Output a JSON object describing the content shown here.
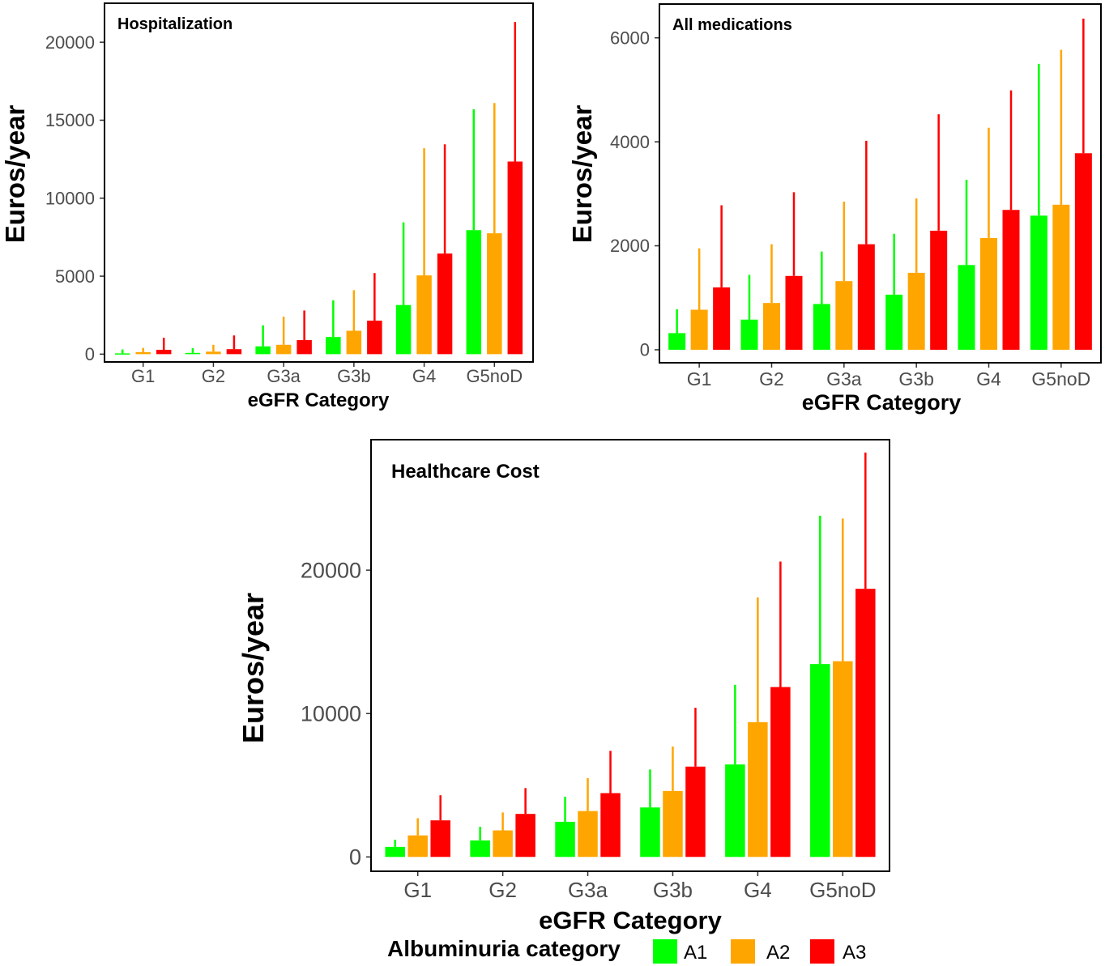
{
  "legend": {
    "title": "Albuminuria category",
    "items": [
      {
        "label": "A1",
        "color": "#00ff00"
      },
      {
        "label": "A2",
        "color": "#ffa500"
      },
      {
        "label": "A3",
        "color": "#ff0000"
      }
    ]
  },
  "chart_data": [
    {
      "type": "bar",
      "title": "Hospitalization",
      "xlabel": "eGFR Category",
      "ylabel": "Euros/year",
      "categories": [
        "G1",
        "G2",
        "G3a",
        "G3b",
        "G4",
        "G5noD"
      ],
      "ylim": [
        -500,
        22500
      ],
      "yticks": [
        0,
        5000,
        10000,
        15000,
        20000
      ],
      "ytick_labels": [
        "0",
        "5000",
        "10000",
        "15000",
        "20000"
      ],
      "series": [
        {
          "name": "A1",
          "color": "#00ff00",
          "values": [
            50,
            80,
            500,
            1100,
            3150,
            7950
          ],
          "upper": [
            300,
            380,
            1850,
            3450,
            8450,
            15700
          ]
        },
        {
          "name": "A2",
          "color": "#ffa500",
          "values": [
            130,
            160,
            600,
            1500,
            5050,
            7750
          ],
          "upper": [
            400,
            600,
            2400,
            4100,
            13200,
            16100
          ]
        },
        {
          "name": "A3",
          "color": "#ff0000",
          "values": [
            280,
            320,
            900,
            2150,
            6450,
            12350
          ],
          "upper": [
            1050,
            1200,
            2800,
            5200,
            13450,
            21300
          ]
        }
      ]
    },
    {
      "type": "bar",
      "title": "All medications",
      "xlabel": "eGFR Category",
      "ylabel": "Euros/year",
      "categories": [
        "G1",
        "G2",
        "G3a",
        "G3b",
        "G4",
        "G5noD"
      ],
      "ylim": [
        -250,
        6650
      ],
      "yticks": [
        0,
        2000,
        4000,
        6000
      ],
      "ytick_labels": [
        "0",
        "2000",
        "4000",
        "6000"
      ],
      "series": [
        {
          "name": "A1",
          "color": "#00ff00",
          "values": [
            320,
            580,
            880,
            1060,
            1630,
            2580
          ],
          "upper": [
            780,
            1440,
            1890,
            2230,
            3270,
            5500
          ]
        },
        {
          "name": "A2",
          "color": "#ffa500",
          "values": [
            770,
            900,
            1320,
            1480,
            2150,
            2790
          ],
          "upper": [
            1950,
            2030,
            2850,
            2910,
            4270,
            5770
          ]
        },
        {
          "name": "A3",
          "color": "#ff0000",
          "values": [
            1200,
            1420,
            2030,
            2290,
            2690,
            3780
          ],
          "upper": [
            2780,
            3030,
            4020,
            4530,
            4990,
            6370
          ]
        }
      ]
    },
    {
      "type": "bar",
      "title": "Healthcare Cost",
      "xlabel": "eGFR Category",
      "ylabel": "Euros/year",
      "categories": [
        "G1",
        "G2",
        "G3a",
        "G3b",
        "G4",
        "G5noD"
      ],
      "ylim": [
        -1000,
        29100
      ],
      "yticks": [
        0,
        10000,
        20000
      ],
      "ytick_labels": [
        "0",
        "10000",
        "20000"
      ],
      "series": [
        {
          "name": "A1",
          "color": "#00ff00",
          "values": [
            700,
            1150,
            2450,
            3450,
            6450,
            13450
          ],
          "upper": [
            1200,
            2100,
            4200,
            6100,
            12000,
            23800
          ]
        },
        {
          "name": "A2",
          "color": "#ffa500",
          "values": [
            1500,
            1850,
            3200,
            4600,
            9400,
            13650
          ],
          "upper": [
            2700,
            3100,
            5500,
            7700,
            18100,
            23600
          ]
        },
        {
          "name": "A3",
          "color": "#ff0000",
          "values": [
            2550,
            3000,
            4450,
            6300,
            11850,
            18700
          ],
          "upper": [
            4300,
            4800,
            7400,
            10400,
            20600,
            28200
          ]
        }
      ]
    }
  ]
}
